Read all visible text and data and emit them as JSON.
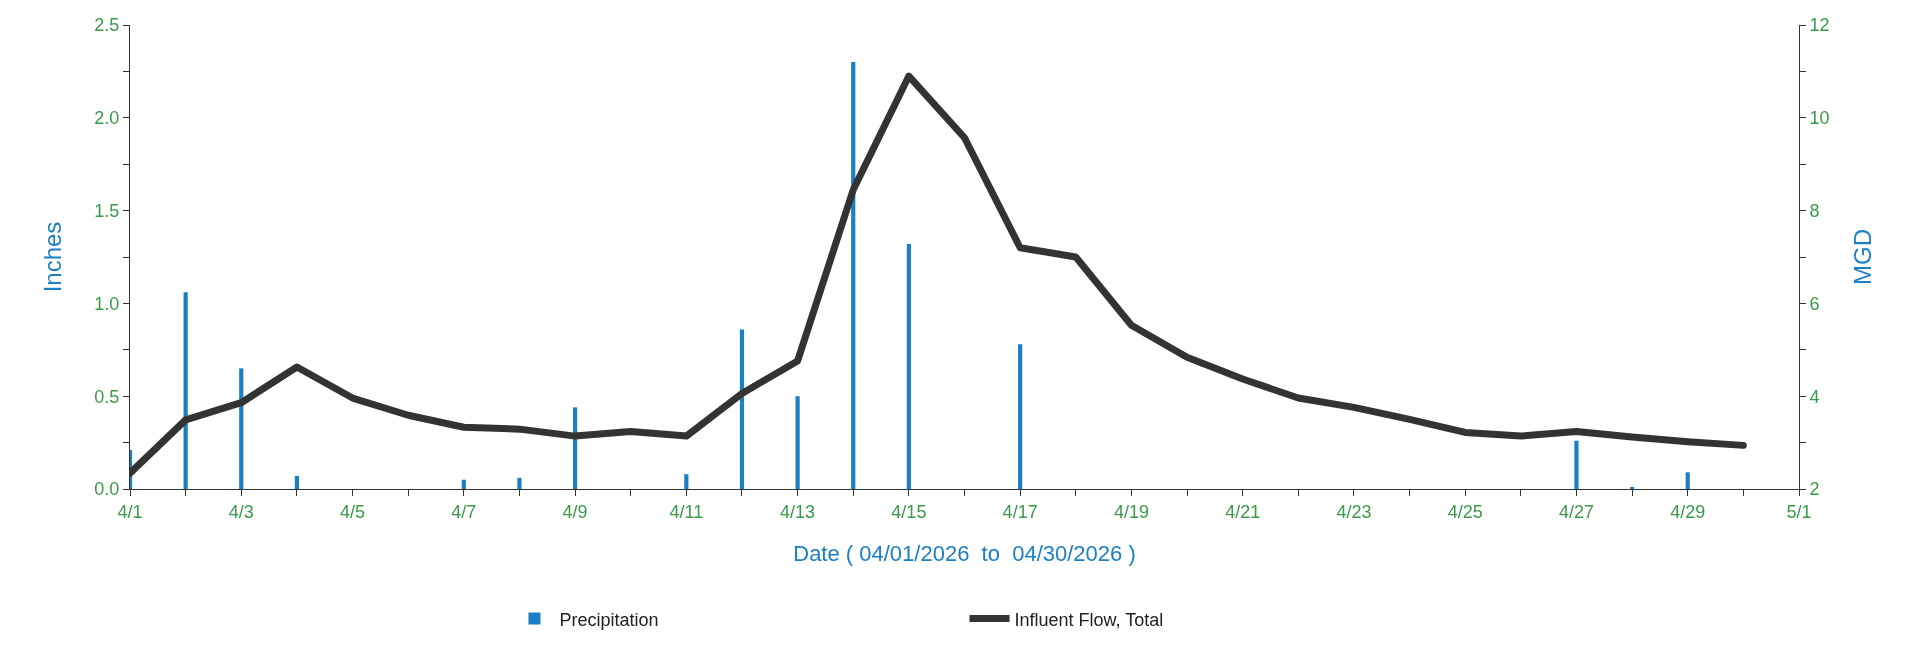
{
  "chart_data": {
    "type": "bar",
    "xlabel": "Date ( 04/01/2026  to  04/30/2026 )",
    "ylabel": "Inches",
    "y2label": "MGD",
    "x": [
      "2026-04-01",
      "2026-04-02",
      "2026-04-03",
      "2026-04-04",
      "2026-04-05",
      "2026-04-06",
      "2026-04-07",
      "2026-04-08",
      "2026-04-09",
      "2026-04-10",
      "2026-04-11",
      "2026-04-12",
      "2026-04-13",
      "2026-04-14",
      "2026-04-15",
      "2026-04-16",
      "2026-04-17",
      "2026-04-18",
      "2026-04-19",
      "2026-04-20",
      "2026-04-21",
      "2026-04-22",
      "2026-04-23",
      "2026-04-24",
      "2026-04-25",
      "2026-04-26",
      "2026-04-27",
      "2026-04-28",
      "2026-04-29",
      "2026-04-30"
    ],
    "series": [
      {
        "name": "Precipitation",
        "color": "#1b7fc4",
        "values": [
          0.21,
          1.06,
          0.65,
          0.07,
          0,
          0,
          0.05,
          0.06,
          0.44,
          0,
          0.08,
          0.86,
          0.5,
          2.3,
          1.32,
          0,
          0.78,
          0,
          0,
          0,
          0,
          0,
          0,
          0,
          0,
          0,
          0.26,
          0.01,
          0.09,
          0
        ]
      },
      {
        "name": "Influent Flow, Total",
        "type": "line",
        "axis": "y2",
        "color": "#333333",
        "values": [
          2.34,
          3.49,
          3.86,
          4.63,
          3.96,
          3.59,
          3.33,
          3.29,
          3.14,
          3.24,
          3.14,
          4.06,
          4.76,
          8.45,
          10.9,
          9.57,
          7.2,
          7.0,
          5.53,
          4.84,
          4.37,
          3.96,
          3.76,
          3.5,
          3.22,
          3.14,
          3.24,
          3.12,
          3.02,
          2.94
        ]
      }
    ],
    "xlim": [
      "2026-04-01",
      "2026-05-01"
    ],
    "xticks": [
      {
        "value": "2026-04-01",
        "label": "4/1"
      },
      {
        "value": "2026-04-02",
        "label": null
      },
      {
        "value": "2026-04-03",
        "label": "4/3"
      },
      {
        "value": "2026-04-04",
        "label": null
      },
      {
        "value": "2026-04-05",
        "label": "4/5"
      },
      {
        "value": "2026-04-06",
        "label": null
      },
      {
        "value": "2026-04-07",
        "label": "4/7"
      },
      {
        "value": "2026-04-08",
        "label": null
      },
      {
        "value": "2026-04-09",
        "label": "4/9"
      },
      {
        "value": "2026-04-10",
        "label": null
      },
      {
        "value": "2026-04-11",
        "label": "4/11"
      },
      {
        "value": "2026-04-12",
        "label": null
      },
      {
        "value": "2026-04-13",
        "label": "4/13"
      },
      {
        "value": "2026-04-14",
        "label": null
      },
      {
        "value": "2026-04-15",
        "label": "4/15"
      },
      {
        "value": "2026-04-16",
        "label": null
      },
      {
        "value": "2026-04-17",
        "label": "4/17"
      },
      {
        "value": "2026-04-18",
        "label": null
      },
      {
        "value": "2026-04-19",
        "label": "4/19"
      },
      {
        "value": "2026-04-20",
        "label": null
      },
      {
        "value": "2026-04-21",
        "label": "4/21"
      },
      {
        "value": "2026-04-22",
        "label": null
      },
      {
        "value": "2026-04-23",
        "label": "4/23"
      },
      {
        "value": "2026-04-24",
        "label": null
      },
      {
        "value": "2026-04-25",
        "label": "4/25"
      },
      {
        "value": "2026-04-26",
        "label": null
      },
      {
        "value": "2026-04-27",
        "label": "4/27"
      },
      {
        "value": "2026-04-28",
        "label": null
      },
      {
        "value": "2026-04-29",
        "label": "4/29"
      },
      {
        "value": "2026-04-30",
        "label": null
      },
      {
        "value": "2026-05-01",
        "label": "5/1"
      }
    ],
    "ylim": [
      0,
      2.5
    ],
    "yticks": [
      {
        "value": 0,
        "label": "0.0"
      },
      {
        "value": 0.25,
        "label": null
      },
      {
        "value": 0.5,
        "label": "0.5"
      },
      {
        "value": 0.75,
        "label": null
      },
      {
        "value": 1,
        "label": "1.0"
      },
      {
        "value": 1.25,
        "label": null
      },
      {
        "value": 1.5,
        "label": "1.5"
      },
      {
        "value": 1.75,
        "label": null
      },
      {
        "value": 2,
        "label": "2.0"
      },
      {
        "value": 2.25,
        "label": null
      },
      {
        "value": 2.5,
        "label": "2.5"
      }
    ],
    "y2lim": [
      2,
      12
    ],
    "y2ticks": [
      2,
      {
        "value": 3,
        "label": null
      },
      4,
      {
        "value": 5,
        "label": null
      },
      6,
      {
        "value": 7,
        "label": null
      },
      8,
      {
        "value": 9,
        "label": null
      },
      10,
      {
        "value": 11,
        "label": null
      },
      12
    ],
    "grid": false,
    "legend": "bottom",
    "marker": "none",
    "line_style": "solid"
  }
}
